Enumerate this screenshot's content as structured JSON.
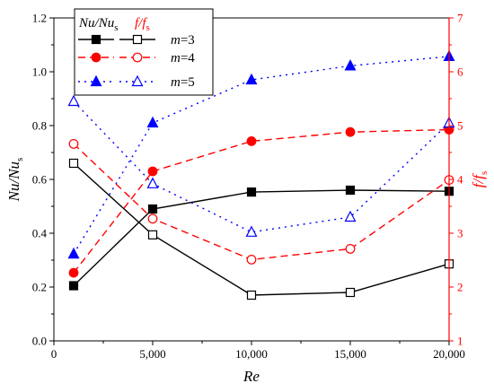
{
  "chart_data": {
    "type": "line",
    "xlabel": "Re",
    "ylabel_left": {
      "main": "Nu",
      "sep": "/",
      "base": "Nu",
      "sub": "s"
    },
    "ylabel_right": {
      "main": "f",
      "sep": "/",
      "base": "f",
      "sub": "s"
    },
    "x": [
      1000,
      5000,
      10000,
      15000,
      20000
    ],
    "xlim": [
      0,
      20000
    ],
    "xticks": [
      "0",
      "5,000",
      "10,000",
      "15,000",
      "20,000"
    ],
    "xtick_values": [
      0,
      5000,
      10000,
      15000,
      20000
    ],
    "ylim_left": [
      0.0,
      1.2
    ],
    "yticks_left": [
      "0.0",
      "0.2",
      "0.4",
      "0.6",
      "0.8",
      "1.0",
      "1.2"
    ],
    "ytick_values_left": [
      0,
      0.2,
      0.4,
      0.6,
      0.8,
      1.0,
      1.2
    ],
    "ylim_right": [
      1,
      7
    ],
    "yticks_right": [
      "1",
      "2",
      "3",
      "4",
      "5",
      "6",
      "7"
    ],
    "ytick_values_right": [
      1,
      2,
      3,
      4,
      5,
      6,
      7
    ],
    "grid": false,
    "legend_position": "top-left",
    "legend": {
      "header_left": {
        "main": "Nu",
        "sep": "/",
        "base": "Nu",
        "sub": "s"
      },
      "header_right": {
        "main": "f",
        "sep": "/",
        "base": "f",
        "sub": "s"
      },
      "entries": [
        {
          "prefix": "m",
          "value": "=3"
        },
        {
          "prefix": "m",
          "value": "=4"
        },
        {
          "prefix": "m",
          "value": "=5"
        }
      ]
    },
    "series": [
      {
        "group": "m=3",
        "axis": "left",
        "color": "#000000",
        "dash": "solid",
        "marker": "square",
        "filled": true,
        "values": [
          0.205,
          0.49,
          0.553,
          0.56,
          0.556
        ]
      },
      {
        "group": "m=3",
        "axis": "right",
        "color": "#000000",
        "dash": "solid",
        "marker": "square",
        "filled": false,
        "values": [
          4.3,
          2.97,
          1.85,
          1.9,
          2.43
        ]
      },
      {
        "group": "m=4",
        "axis": "left",
        "color": "#ff0000",
        "dash": "dashed",
        "marker": "circle",
        "filled": true,
        "values": [
          0.253,
          0.63,
          0.742,
          0.776,
          0.785
        ]
      },
      {
        "group": "m=4",
        "axis": "right",
        "color": "#ff0000",
        "dash": "dashed",
        "marker": "circle",
        "filled": false,
        "values": [
          4.66,
          3.27,
          2.51,
          2.71,
          3.99
        ]
      },
      {
        "group": "m=5",
        "axis": "left",
        "color": "#0000ff",
        "dash": "dotted",
        "marker": "triangle",
        "filled": true,
        "values": [
          0.323,
          0.81,
          0.97,
          1.022,
          1.057
        ]
      },
      {
        "group": "m=5",
        "axis": "right",
        "color": "#0000ff",
        "dash": "dotted",
        "marker": "triangle",
        "filled": false,
        "values": [
          5.45,
          3.92,
          3.02,
          3.3,
          5.05
        ]
      }
    ]
  },
  "colors": {
    "left_axis": "#000000",
    "right_axis": "#ff0000"
  }
}
